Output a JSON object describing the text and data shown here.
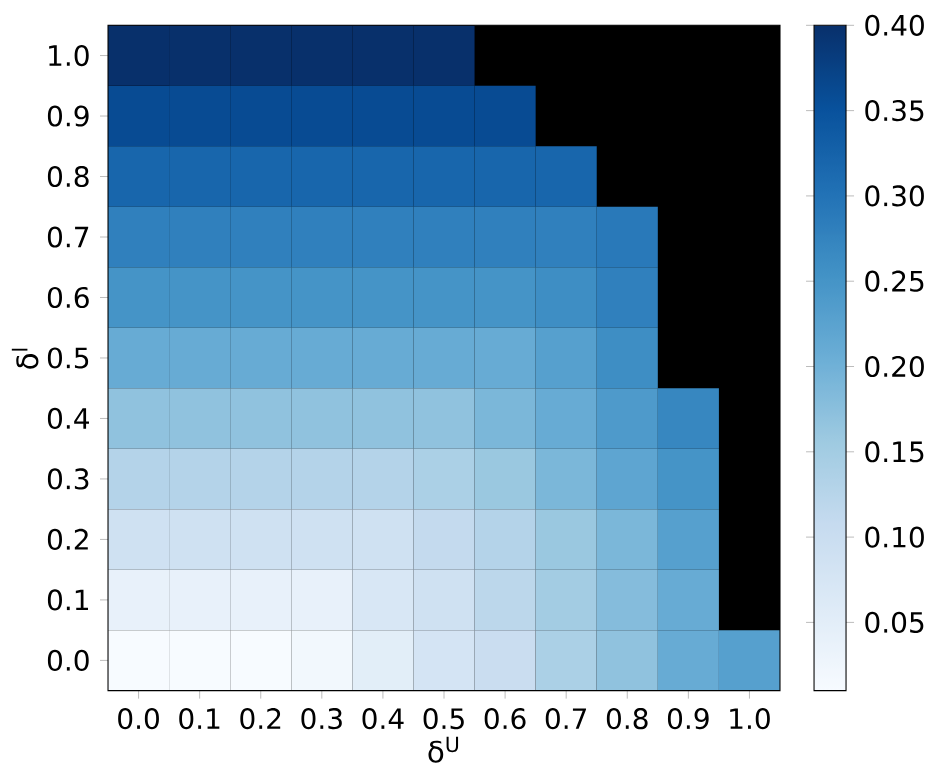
{
  "chart_data": {
    "type": "heatmap",
    "xlabel": "δ$^{U}$",
    "ylabel": "δ$^{l}$",
    "categories": [
      "0.0",
      "0.1",
      "0.2",
      "0.3",
      "0.4",
      "0.5",
      "0.6",
      "0.7",
      "0.8",
      "0.9",
      "1.0"
    ],
    "y_categories": [
      "1.0",
      "0.9",
      "0.8",
      "0.7",
      "0.6",
      "0.5",
      "0.4",
      "0.3",
      "0.2",
      "0.1",
      "0.0"
    ],
    "cells": [
      [
        0.4,
        0.4,
        0.4,
        0.4,
        0.4,
        0.4,
        null,
        null,
        null,
        null,
        null
      ],
      [
        0.36,
        0.36,
        0.36,
        0.36,
        0.36,
        0.36,
        0.36,
        null,
        null,
        null,
        null
      ],
      [
        0.32,
        0.32,
        0.32,
        0.32,
        0.32,
        0.32,
        0.32,
        0.32,
        null,
        null,
        null
      ],
      [
        0.28,
        0.28,
        0.28,
        0.28,
        0.28,
        0.28,
        0.28,
        0.28,
        0.29,
        null,
        null
      ],
      [
        0.25,
        0.25,
        0.25,
        0.25,
        0.25,
        0.25,
        0.25,
        0.26,
        0.28,
        null,
        null
      ],
      [
        0.21,
        0.21,
        0.21,
        0.21,
        0.21,
        0.21,
        0.21,
        0.23,
        0.26,
        null,
        null
      ],
      [
        0.17,
        0.17,
        0.17,
        0.17,
        0.17,
        0.17,
        0.19,
        0.21,
        0.24,
        0.27,
        null
      ],
      [
        0.13,
        0.13,
        0.13,
        0.13,
        0.13,
        0.14,
        0.16,
        0.19,
        0.22,
        0.25,
        null
      ],
      [
        0.09,
        0.09,
        0.09,
        0.09,
        0.09,
        0.11,
        0.13,
        0.16,
        0.19,
        0.23,
        null
      ],
      [
        0.04,
        0.04,
        0.04,
        0.04,
        0.07,
        0.09,
        0.12,
        0.15,
        0.18,
        0.21,
        null
      ],
      [
        0.01,
        0.01,
        0.01,
        0.02,
        0.05,
        0.08,
        0.1,
        0.14,
        0.17,
        0.21,
        0.23
      ]
    ],
    "clim": [
      0.01,
      0.4
    ],
    "cticks": [
      0.05,
      {
        "value": 0.1,
        "label": "0.10"
      },
      0.15,
      {
        "value": 0.2,
        "label": "0.20"
      },
      0.25,
      {
        "value": 0.3,
        "label": "0.30"
      },
      0.35,
      {
        "value": 0.4,
        "label": "0.40"
      }
    ]
  }
}
